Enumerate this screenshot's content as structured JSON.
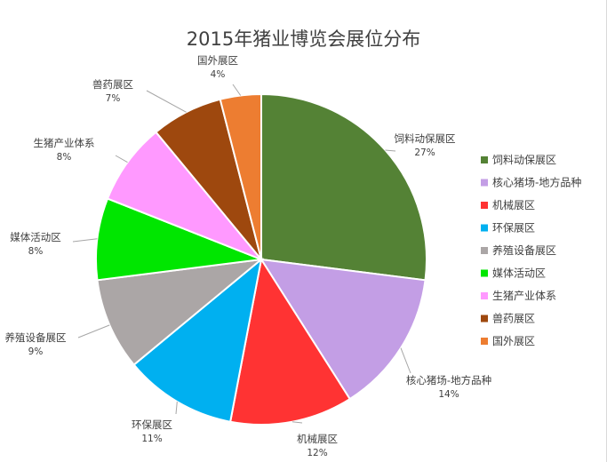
{
  "chart_data": {
    "type": "pie",
    "title": "2015年猪业博览会展位分布",
    "legend_position": "right",
    "slices": [
      {
        "label": "饲料动保展区",
        "value": 27,
        "display": "27%",
        "color": "#548235"
      },
      {
        "label": "核心猪场-地方品种",
        "value": 14,
        "display": "14%",
        "color": "#c39ee5"
      },
      {
        "label": "机械展区",
        "value": 12,
        "display": "12%",
        "color": "#ff3333"
      },
      {
        "label": "环保展区",
        "value": 11,
        "display": "11%",
        "color": "#00b0f0"
      },
      {
        "label": "养殖设备展区",
        "value": 9,
        "display": "9%",
        "color": "#aba6a6"
      },
      {
        "label": "媒体活动区",
        "value": 8,
        "display": "8%",
        "color": "#00e600"
      },
      {
        "label": "生猪产业体系",
        "value": 8,
        "display": "8%",
        "color": "#ff99ff"
      },
      {
        "label": "兽药展区",
        "value": 7,
        "display": "7%",
        "color": "#9e480e"
      },
      {
        "label": "国外展区",
        "value": 4,
        "display": "4%",
        "color": "#ed7d31"
      }
    ]
  }
}
